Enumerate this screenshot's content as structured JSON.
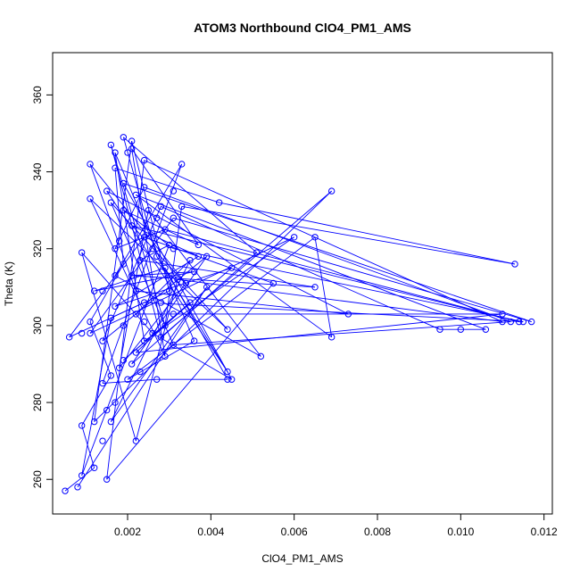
{
  "chart_data": {
    "type": "line",
    "title": "ATOM3 Northbound ClO4_PM1_AMS",
    "xlabel": "ClO4_PM1_AMS",
    "ylabel": "Theta (K)",
    "xlim": [
      0.0002,
      0.0122
    ],
    "ylim": [
      251,
      371
    ],
    "x_ticks": [
      0.002,
      0.004,
      0.006,
      0.008,
      0.01,
      0.012
    ],
    "x_tick_labels": [
      "0.002",
      "0.004",
      "0.006",
      "0.008",
      "0.010",
      "0.012"
    ],
    "y_ticks": [
      260,
      280,
      300,
      320,
      340,
      360
    ],
    "y_tick_labels": [
      "260",
      "280",
      "300",
      "320",
      "340",
      "360"
    ],
    "grid": false,
    "legend": "none",
    "series_color": "#0000ff",
    "marker": "open-circle",
    "points": [
      [
        0.0005,
        257
      ],
      [
        0.0008,
        258
      ],
      [
        0.0009,
        261
      ],
      [
        0.0012,
        263
      ],
      [
        0.0015,
        260
      ],
      [
        0.0014,
        270
      ],
      [
        0.0009,
        274
      ],
      [
        0.0012,
        275
      ],
      [
        0.0016,
        275
      ],
      [
        0.0015,
        278
      ],
      [
        0.0017,
        280
      ],
      [
        0.0014,
        285
      ],
      [
        0.0016,
        287
      ],
      [
        0.0018,
        289
      ],
      [
        0.0019,
        291
      ],
      [
        0.0014,
        296
      ],
      [
        0.0009,
        298
      ],
      [
        0.0006,
        297
      ],
      [
        0.0011,
        298
      ],
      [
        0.0011,
        301
      ],
      [
        0.0016,
        302
      ],
      [
        0.0019,
        300
      ],
      [
        0.0017,
        305
      ],
      [
        0.0014,
        309
      ],
      [
        0.0012,
        309
      ],
      [
        0.0009,
        319
      ],
      [
        0.0017,
        313
      ],
      [
        0.0019,
        316
      ],
      [
        0.0017,
        320
      ],
      [
        0.0018,
        322
      ],
      [
        0.0021,
        326
      ],
      [
        0.0019,
        330
      ],
      [
        0.0016,
        332
      ],
      [
        0.0011,
        333
      ],
      [
        0.0015,
        335
      ],
      [
        0.0019,
        337
      ],
      [
        0.0017,
        341
      ],
      [
        0.0011,
        342
      ],
      [
        0.0017,
        345
      ],
      [
        0.002,
        345
      ],
      [
        0.0016,
        347
      ],
      [
        0.0021,
        348
      ],
      [
        0.0019,
        349
      ],
      [
        0.0021,
        346
      ],
      [
        0.0024,
        343
      ],
      [
        0.0024,
        336
      ],
      [
        0.0022,
        334
      ],
      [
        0.0025,
        330
      ],
      [
        0.0027,
        328
      ],
      [
        0.0024,
        323
      ],
      [
        0.0026,
        320
      ],
      [
        0.0023,
        317
      ],
      [
        0.0021,
        313
      ],
      [
        0.0022,
        309
      ],
      [
        0.0024,
        306
      ],
      [
        0.0022,
        303
      ],
      [
        0.0024,
        301
      ],
      [
        0.0026,
        298
      ],
      [
        0.0024,
        296
      ],
      [
        0.0022,
        293
      ],
      [
        0.0021,
        290
      ],
      [
        0.0023,
        288
      ],
      [
        0.002,
        286
      ],
      [
        0.0022,
        270
      ],
      [
        0.0027,
        286
      ],
      [
        0.0029,
        292
      ],
      [
        0.0031,
        295
      ],
      [
        0.0028,
        297
      ],
      [
        0.0029,
        300
      ],
      [
        0.0031,
        303
      ],
      [
        0.0028,
        306
      ],
      [
        0.003,
        309
      ],
      [
        0.0032,
        312
      ],
      [
        0.0029,
        315
      ],
      [
        0.0027,
        318
      ],
      [
        0.003,
        321
      ],
      [
        0.0029,
        325
      ],
      [
        0.0031,
        328
      ],
      [
        0.0028,
        331
      ],
      [
        0.0031,
        335
      ],
      [
        0.0033,
        342
      ],
      [
        0.0033,
        331
      ],
      [
        0.0031,
        320
      ],
      [
        0.0035,
        317
      ],
      [
        0.0036,
        314
      ],
      [
        0.0034,
        311
      ],
      [
        0.0035,
        306
      ],
      [
        0.0037,
        318
      ],
      [
        0.0039,
        318
      ],
      [
        0.0037,
        321
      ],
      [
        0.0042,
        332
      ],
      [
        0.0039,
        310
      ],
      [
        0.0036,
        296
      ],
      [
        0.0044,
        299
      ],
      [
        0.0045,
        315
      ],
      [
        0.0044,
        288
      ],
      [
        0.0044,
        286
      ],
      [
        0.0045,
        286
      ],
      [
        0.0051,
        319
      ],
      [
        0.0052,
        292
      ],
      [
        0.0055,
        311
      ],
      [
        0.006,
        323
      ],
      [
        0.0065,
        323
      ],
      [
        0.0065,
        310
      ],
      [
        0.0069,
        335
      ],
      [
        0.0069,
        297
      ],
      [
        0.0073,
        303
      ],
      [
        0.0095,
        299
      ],
      [
        0.01,
        299
      ],
      [
        0.0106,
        299
      ],
      [
        0.011,
        301
      ],
      [
        0.011,
        303
      ],
      [
        0.0112,
        301
      ],
      [
        0.0114,
        301
      ],
      [
        0.0115,
        301
      ],
      [
        0.0117,
        301
      ],
      [
        0.0113,
        316
      ]
    ],
    "path": [
      [
        0.0005,
        257
      ],
      [
        0.0012,
        263
      ],
      [
        0.0009,
        274
      ],
      [
        0.0016,
        287
      ],
      [
        0.0011,
        301
      ],
      [
        0.0019,
        316
      ],
      [
        0.0017,
        341
      ],
      [
        0.0042,
        332
      ],
      [
        0.0113,
        316
      ],
      [
        0.0033,
        331
      ],
      [
        0.0029,
        300
      ],
      [
        0.0016,
        347
      ],
      [
        0.0028,
        297
      ],
      [
        0.0069,
        335
      ],
      [
        0.0012,
        275
      ],
      [
        0.0021,
        348
      ],
      [
        0.003,
        309
      ],
      [
        0.0006,
        297
      ],
      [
        0.0024,
        323
      ],
      [
        0.0055,
        311
      ],
      [
        0.0015,
        260
      ],
      [
        0.0024,
        343
      ],
      [
        0.011,
        301
      ],
      [
        0.0032,
        312
      ],
      [
        0.0022,
        270
      ],
      [
        0.0009,
        319
      ],
      [
        0.0026,
        298
      ],
      [
        0.0045,
        286
      ],
      [
        0.0019,
        337
      ],
      [
        0.0117,
        301
      ],
      [
        0.0031,
        328
      ],
      [
        0.0011,
        298
      ],
      [
        0.006,
        323
      ],
      [
        0.0024,
        296
      ],
      [
        0.0017,
        345
      ],
      [
        0.0036,
        296
      ],
      [
        0.002,
        286
      ],
      [
        0.0065,
        323
      ],
      [
        0.0069,
        297
      ],
      [
        0.0022,
        334
      ],
      [
        0.0106,
        299
      ],
      [
        0.0095,
        299
      ],
      [
        0.0028,
        331
      ],
      [
        0.0014,
        296
      ],
      [
        0.0039,
        318
      ],
      [
        0.0021,
        290
      ],
      [
        0.0051,
        319
      ],
      [
        0.0019,
        349
      ],
      [
        0.0027,
        318
      ],
      [
        0.0044,
        288
      ],
      [
        0.0015,
        335
      ],
      [
        0.0073,
        303
      ],
      [
        0.0022,
        309
      ],
      [
        0.0011,
        342
      ],
      [
        0.0034,
        311
      ],
      [
        0.0018,
        289
      ],
      [
        0.0025,
        330
      ],
      [
        0.0052,
        292
      ],
      [
        0.0017,
        313
      ],
      [
        0.0033,
        342
      ],
      [
        0.0014,
        285
      ],
      [
        0.0027,
        286
      ],
      [
        0.0044,
        286
      ],
      [
        0.0029,
        315
      ],
      [
        0.0012,
        309
      ],
      [
        0.0036,
        314
      ],
      [
        0.0021,
        313
      ],
      [
        0.0065,
        310
      ],
      [
        0.0023,
        317
      ],
      [
        0.003,
        321
      ],
      [
        0.0009,
        261
      ],
      [
        0.0016,
        302
      ],
      [
        0.0024,
        306
      ],
      [
        0.0115,
        301
      ],
      [
        0.0031,
        320
      ],
      [
        0.0019,
        330
      ],
      [
        0.0037,
        321
      ],
      [
        0.0021,
        346
      ],
      [
        0.0029,
        292
      ],
      [
        0.0011,
        333
      ],
      [
        0.0044,
        299
      ],
      [
        0.0016,
        332
      ],
      [
        0.0031,
        295
      ],
      [
        0.0112,
        301
      ],
      [
        0.0024,
        336
      ],
      [
        0.0017,
        320
      ],
      [
        0.0029,
        325
      ],
      [
        0.0114,
        301
      ],
      [
        0.0021,
        326
      ],
      [
        0.0037,
        318
      ],
      [
        0.0017,
        305
      ],
      [
        0.0045,
        315
      ],
      [
        0.0019,
        291
      ],
      [
        0.0035,
        306
      ],
      [
        0.0022,
        293
      ],
      [
        0.011,
        303
      ],
      [
        0.0022,
        303
      ],
      [
        0.0035,
        317
      ],
      [
        0.0016,
        275
      ],
      [
        0.0039,
        310
      ],
      [
        0.0008,
        258
      ]
    ]
  }
}
